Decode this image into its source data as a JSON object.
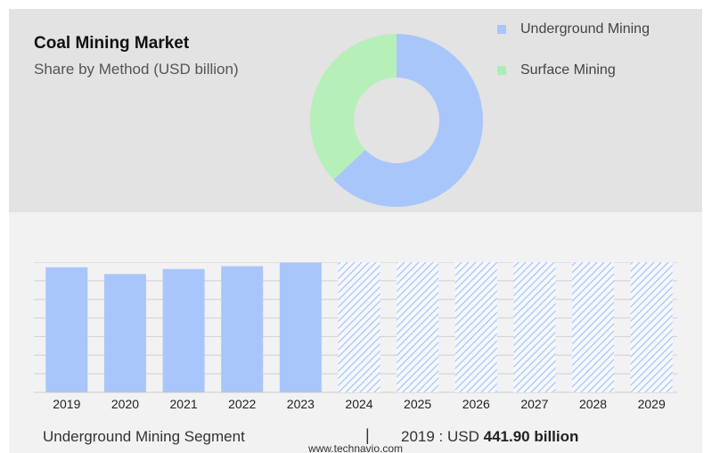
{
  "header": {
    "title": "Coal Mining Market",
    "subtitle": "Share by Method (USD billion)"
  },
  "legend": {
    "items": [
      {
        "label": "Underground Mining",
        "color": "#a9c6fb"
      },
      {
        "label": "Surface Mining",
        "color": "#a9efb0"
      }
    ]
  },
  "chart_data": [
    {
      "type": "pie",
      "variant": "donut",
      "slices": [
        {
          "label": "Underground Mining",
          "value": 63,
          "color": "#a9c6fb"
        },
        {
          "label": "Surface Mining",
          "value": 37,
          "color": "#b6efb8"
        }
      ]
    },
    {
      "type": "bar",
      "categories": [
        "2019",
        "2020",
        "2021",
        "2022",
        "2023",
        "2024",
        "2025",
        "2026",
        "2027",
        "2028",
        "2029"
      ],
      "series": [
        {
          "name": "Underground Mining",
          "values": [
            441.9,
            418,
            436,
            446,
            458,
            null,
            null,
            null,
            null,
            null,
            null
          ]
        }
      ],
      "forecast_categories": [
        "2024",
        "2025",
        "2026",
        "2027",
        "2028",
        "2029"
      ],
      "forecast_style": "hatched",
      "bar_color": "#a9c6fb",
      "hatch_color": "#a9c6fb",
      "grid": true
    }
  ],
  "footer": {
    "segment": "Underground Mining Segment",
    "separator": "|",
    "value_prefix": "2019 : USD",
    "value_bold": "441.90 billion"
  },
  "source": "www.technavio.com"
}
